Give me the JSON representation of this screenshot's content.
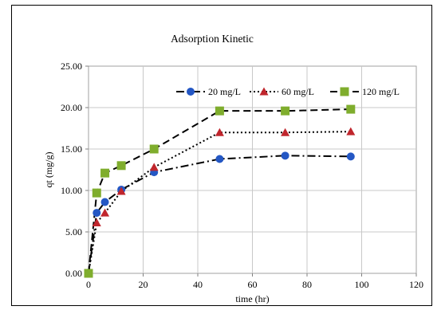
{
  "chart_data": {
    "type": "line",
    "title": "Adsorption Kinetic",
    "xlabel": "time (hr)",
    "ylabel": "qt (mg/g)",
    "xlim": [
      0,
      120
    ],
    "ylim": [
      0,
      25
    ],
    "x_ticks": [
      "0",
      "20",
      "40",
      "60",
      "80",
      "100",
      "120"
    ],
    "y_ticks": [
      "0.00",
      "5.00",
      "10.00",
      "15.00",
      "20.00",
      "25.00"
    ],
    "grid": true,
    "legend_position": "top-right",
    "series": [
      {
        "name": "20 mg/L",
        "color": "#2457c4",
        "marker": "circle",
        "line_style": "dash-dot",
        "x": [
          0,
          3,
          6,
          12,
          24,
          48,
          72,
          96
        ],
        "y": [
          0.0,
          7.3,
          8.6,
          10.1,
          12.2,
          13.8,
          14.2,
          14.1
        ]
      },
      {
        "name": "60 mg/L",
        "color": "#c0262d",
        "marker": "triangle",
        "line_style": "dotted",
        "x": [
          0,
          3,
          6,
          12,
          24,
          48,
          72,
          96
        ],
        "y": [
          0.0,
          6.1,
          7.3,
          9.9,
          12.8,
          17.0,
          17.0,
          17.1
        ]
      },
      {
        "name": "120 mg/L",
        "color": "#7fad2d",
        "marker": "square",
        "line_style": "dashed",
        "x": [
          0,
          3,
          6,
          12,
          24,
          48,
          72,
          96
        ],
        "y": [
          0.0,
          9.7,
          12.1,
          13.0,
          15.0,
          19.6,
          19.6,
          19.8
        ]
      }
    ]
  }
}
